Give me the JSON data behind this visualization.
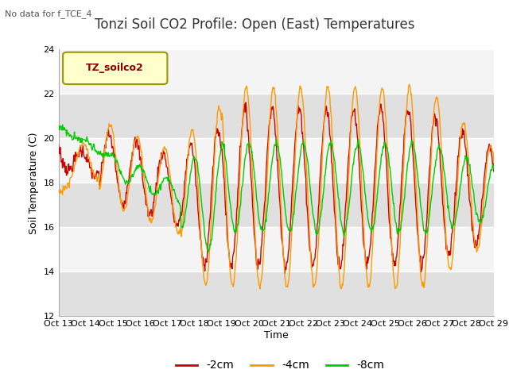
{
  "title": "Tonzi Soil CO2 Profile: Open (East) Temperatures",
  "top_left_text": "No data for f_TCE_4",
  "ylabel": "Soil Temperature (C)",
  "xlabel": "Time",
  "legend_label": "TZ_soilco2",
  "series_labels": [
    "-2cm",
    "-4cm",
    "-8cm"
  ],
  "series_colors": [
    "#cc0000",
    "#ff9900",
    "#00cc00"
  ],
  "ylim": [
    12,
    24
  ],
  "yticks": [
    12,
    14,
    16,
    18,
    20,
    22,
    24
  ],
  "xtick_labels": [
    "Oct 13",
    "Oct 14",
    "Oct 15",
    "Oct 16",
    "Oct 17",
    "Oct 18",
    "Oct 19",
    "Oct 20",
    "Oct 21",
    "Oct 22",
    "Oct 23",
    "Oct 24",
    "Oct 25",
    "Oct 26",
    "Oct 27",
    "Oct 28",
    "Oct 29"
  ],
  "background_color": "#ffffff",
  "plot_bg_color": "#e8e8e8",
  "band_color_light": "#f4f4f4",
  "band_color_dark": "#e0e0e0",
  "grid_color": "#ffffff",
  "title_fontsize": 12,
  "tick_fontsize": 8,
  "label_fontsize": 9,
  "legend_box_facecolor": "#ffffcc",
  "legend_box_edgecolor": "#999900",
  "legend_text_color": "#880000"
}
